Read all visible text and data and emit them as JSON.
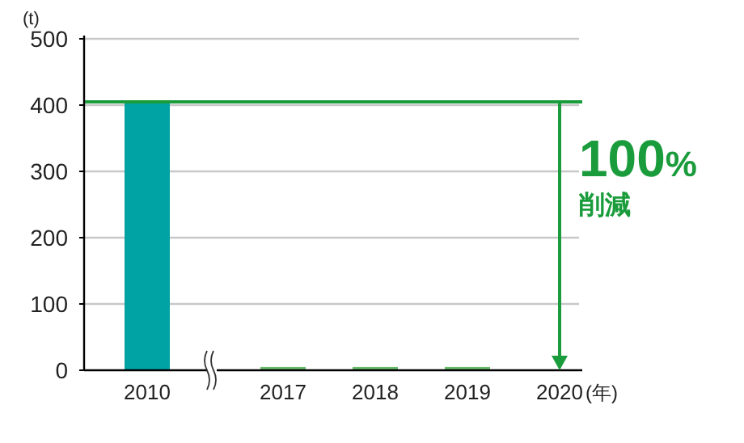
{
  "chart_data": {
    "type": "bar",
    "ylabel": "(t)",
    "xlabel": "(年)",
    "categories": [
      "2010",
      "2017",
      "2018",
      "2019",
      "2020"
    ],
    "values": [
      405,
      5,
      5,
      5,
      0
    ],
    "colors": [
      "#00a3a3",
      "#66bb6a",
      "#66bb6a",
      "#66bb6a",
      "#66bb6a"
    ],
    "ylim": [
      0,
      500
    ],
    "yticks": [
      0,
      100,
      200,
      300,
      400,
      500
    ],
    "grid": "y",
    "ref_lines": [
      {
        "axis": "y",
        "value": 405,
        "color": "#1a9c3c"
      }
    ],
    "annotations": [
      "100%",
      "削減"
    ]
  }
}
